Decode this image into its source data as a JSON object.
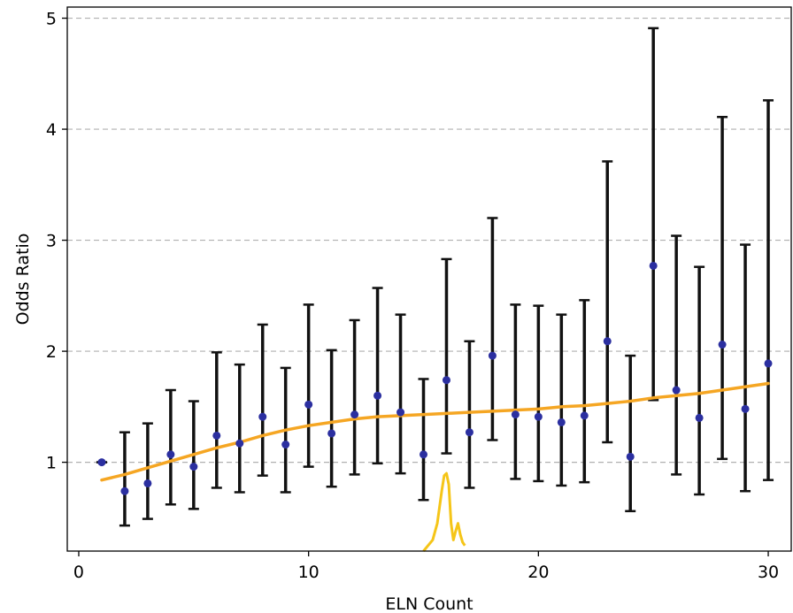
{
  "chart_data": {
    "type": "scatter",
    "xlabel": "ELN Count",
    "ylabel": "Odds Ratio",
    "xlim": [
      -0.5,
      31
    ],
    "ylim": [
      0.2,
      5.1
    ],
    "xticks": [
      0,
      10,
      20,
      30
    ],
    "yticks": [
      1,
      2,
      3,
      4,
      5
    ],
    "grid": "horizontal dashed",
    "colors": {
      "points": "#2b2fa0",
      "errorbars": "#111111",
      "trend": "#f5a623",
      "density": "#f5c518",
      "grid": "#b0b0b0"
    },
    "series": [
      {
        "x": [
          1,
          2,
          3,
          4,
          5,
          6,
          7,
          8,
          9,
          10,
          11,
          12,
          13,
          14,
          15,
          16,
          17,
          18,
          19,
          20,
          21,
          22,
          23,
          24,
          25,
          26,
          27,
          28,
          29,
          30
        ],
        "y": [
          1.0,
          0.74,
          0.81,
          1.07,
          0.96,
          1.24,
          1.17,
          1.41,
          1.16,
          1.52,
          1.26,
          1.43,
          1.6,
          1.45,
          1.07,
          1.74,
          1.27,
          1.96,
          1.43,
          1.41,
          1.36,
          1.42,
          2.09,
          1.05,
          2.77,
          1.65,
          1.4,
          2.06,
          1.48,
          1.89
        ],
        "lower": [
          1.0,
          0.43,
          0.49,
          0.62,
          0.58,
          0.77,
          0.73,
          0.88,
          0.73,
          0.96,
          0.78,
          0.89,
          0.99,
          0.9,
          0.66,
          1.08,
          0.77,
          1.2,
          0.85,
          0.83,
          0.79,
          0.82,
          1.18,
          0.56,
          1.56,
          0.89,
          0.71,
          1.03,
          0.74,
          0.84
        ],
        "upper": [
          1.0,
          1.27,
          1.35,
          1.65,
          1.55,
          1.99,
          1.88,
          2.24,
          1.85,
          2.42,
          2.01,
          2.28,
          2.57,
          2.33,
          1.75,
          2.83,
          2.09,
          3.2,
          2.42,
          2.41,
          2.33,
          2.46,
          3.71,
          1.96,
          4.91,
          3.04,
          2.76,
          4.11,
          2.96,
          4.26
        ]
      }
    ],
    "trend": {
      "x": [
        1,
        2,
        3,
        4,
        5,
        6,
        7,
        8,
        9,
        10,
        11,
        12,
        13,
        14,
        15,
        16,
        17,
        18,
        19,
        20,
        21,
        22,
        23,
        24,
        25,
        26,
        27,
        28,
        29,
        30
      ],
      "y": [
        0.84,
        0.89,
        0.95,
        1.01,
        1.07,
        1.13,
        1.18,
        1.24,
        1.29,
        1.33,
        1.36,
        1.39,
        1.41,
        1.42,
        1.43,
        1.44,
        1.45,
        1.46,
        1.47,
        1.48,
        1.5,
        1.51,
        1.53,
        1.55,
        1.58,
        1.6,
        1.62,
        1.65,
        1.68,
        1.71
      ]
    },
    "density": {
      "x": [
        15.0,
        15.2,
        15.4,
        15.6,
        15.8,
        15.9,
        16.0,
        16.1,
        16.2,
        16.3,
        16.4,
        16.5,
        16.6,
        16.7,
        16.8
      ],
      "y": [
        0.2,
        0.25,
        0.3,
        0.45,
        0.75,
        0.88,
        0.9,
        0.8,
        0.45,
        0.3,
        0.38,
        0.45,
        0.35,
        0.28,
        0.25
      ]
    }
  }
}
